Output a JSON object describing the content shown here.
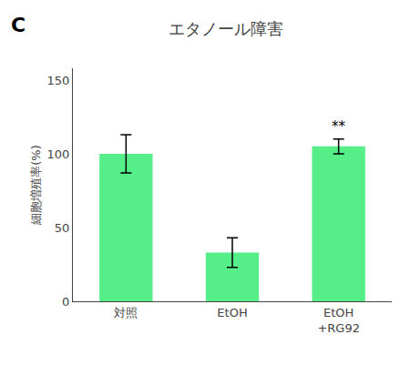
{
  "chart_data": {
    "type": "bar",
    "title": "エタノール障害",
    "categories": [
      "対照",
      "EtOH",
      "EtOH\n+RG92"
    ],
    "values": [
      100,
      33,
      105
    ],
    "errors": [
      13,
      10,
      5
    ],
    "ylabel": "細胞増殖率(%)",
    "ylim": [
      0,
      158
    ],
    "yticks": [
      0,
      50,
      100,
      150
    ],
    "color": "#55ee88",
    "grid": false,
    "annotations": [
      {
        "text": "**",
        "category": "EtOH\n+RG92"
      },
      {
        "text": "C"
      }
    ]
  }
}
